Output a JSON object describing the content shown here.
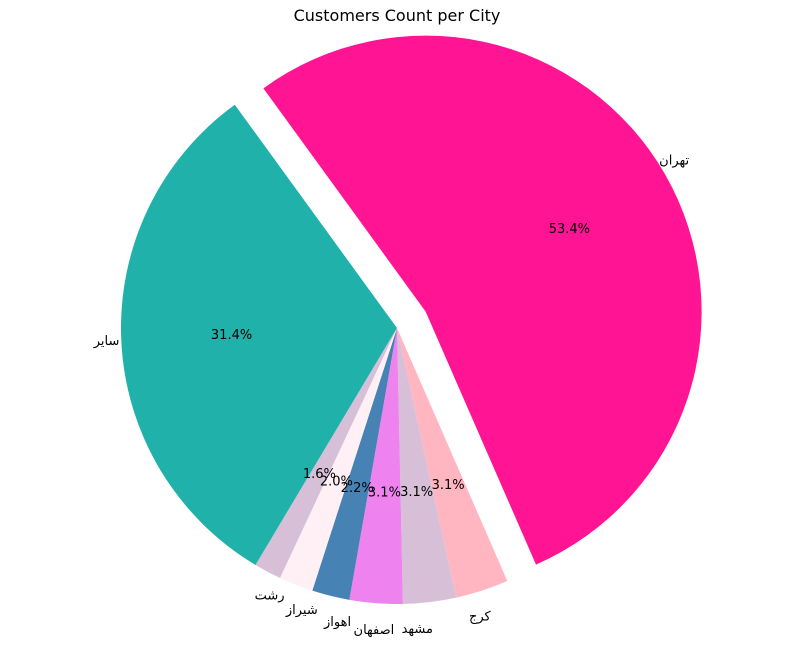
{
  "chart_data": {
    "type": "pie",
    "title": "Customers Count per City",
    "slices": [
      {
        "label": "تهران",
        "value": 53.4,
        "pct_label": "53.4%",
        "color": "#ff1493",
        "exploded": true
      },
      {
        "label": "کرج",
        "value": 3.1,
        "pct_label": "3.1%",
        "color": "#ffb6c1",
        "exploded": false
      },
      {
        "label": "مشهد",
        "value": 3.1,
        "pct_label": "3.1%",
        "color": "#d8bfd8",
        "exploded": false
      },
      {
        "label": "اصفهان",
        "value": 3.1,
        "pct_label": "3.1%",
        "color": "#ee82ee",
        "exploded": false
      },
      {
        "label": "اهواز",
        "value": 2.2,
        "pct_label": "2.2%",
        "color": "#4682b4",
        "exploded": false
      },
      {
        "label": "شیراز",
        "value": 2.0,
        "pct_label": "2.0%",
        "color": "#fff0f5",
        "exploded": false
      },
      {
        "label": "رشت",
        "value": 1.6,
        "pct_label": "1.6%",
        "color": "#d8bfd8",
        "exploded": false
      },
      {
        "label": "سایر",
        "value": 31.4,
        "pct_label": "31.4%",
        "color": "#20b2aa",
        "exploded": false
      }
    ],
    "start_angle": 126,
    "direction": "clockwise",
    "legend": "none"
  }
}
